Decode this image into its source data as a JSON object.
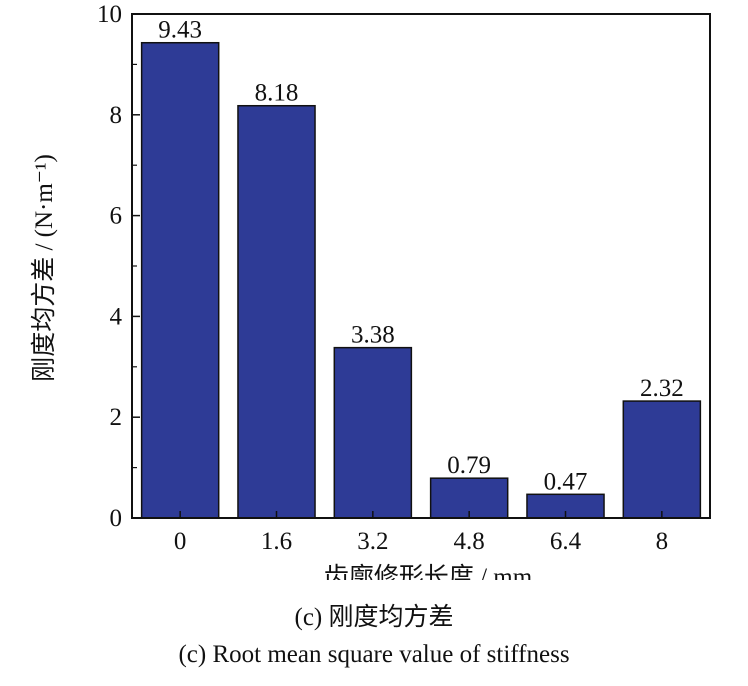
{
  "chart_data": {
    "type": "bar",
    "categories": [
      "0",
      "1.6",
      "3.2",
      "4.8",
      "6.4",
      "8"
    ],
    "values": [
      9.43,
      8.18,
      3.38,
      0.79,
      0.47,
      2.32
    ],
    "value_labels": [
      "9.43",
      "8.18",
      "3.38",
      "0.79",
      "0.47",
      "2.32"
    ],
    "xlabel": "齿廓修形长度 / mm",
    "ylabel": "刚度均方差 / (N·m⁻¹)",
    "ylim": [
      0,
      10
    ],
    "yticks": [
      "0",
      "2",
      "4",
      "6",
      "8",
      "10"
    ],
    "grid": false,
    "bar_color": "#2e3b96"
  },
  "captions": {
    "cn": "(c) 刚度均方差",
    "en": "(c) Root mean square value of stiffness"
  }
}
